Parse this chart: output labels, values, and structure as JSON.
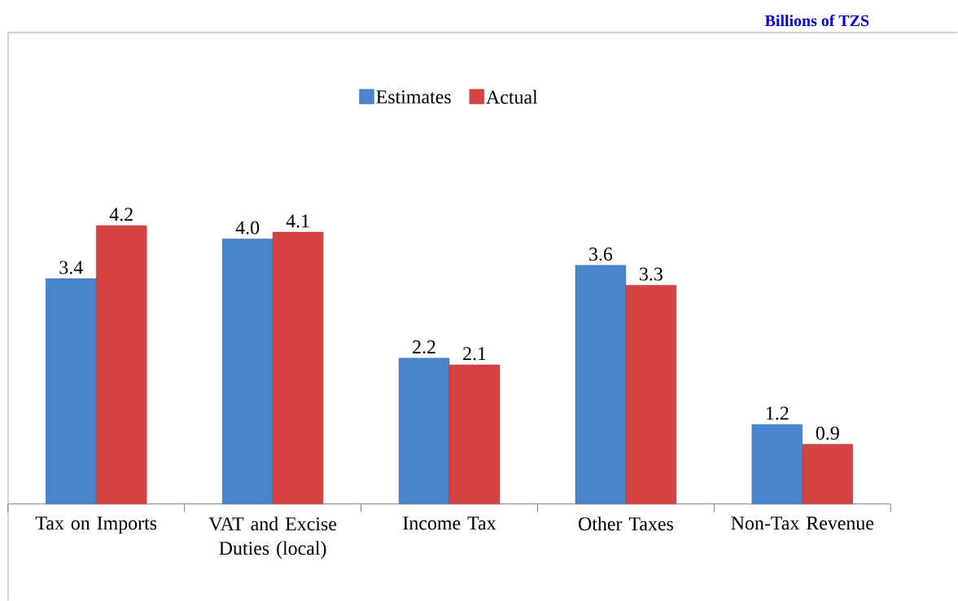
{
  "chart_data": {
    "type": "bar",
    "title": "Billions of TZS",
    "categories": [
      "Tax on Imports",
      "VAT and Excise Duties (local)",
      "Income Tax",
      "Other Taxes",
      "Non-Tax Revenue"
    ],
    "series": [
      {
        "name": "Estimates",
        "color": "#4a84cc",
        "values": [
          3.4,
          4.0,
          2.2,
          3.6,
          1.2
        ],
        "value_labels": [
          "3.4",
          "4.0",
          "2.2",
          "3.6",
          "1.2"
        ]
      },
      {
        "name": "Actual",
        "color": "#d64343",
        "values": [
          4.2,
          4.1,
          2.1,
          3.3,
          0.9
        ],
        "value_labels": [
          "4.2",
          "4.1",
          "2.1",
          "3.3",
          "0.9"
        ]
      }
    ],
    "legend": "top"
  }
}
